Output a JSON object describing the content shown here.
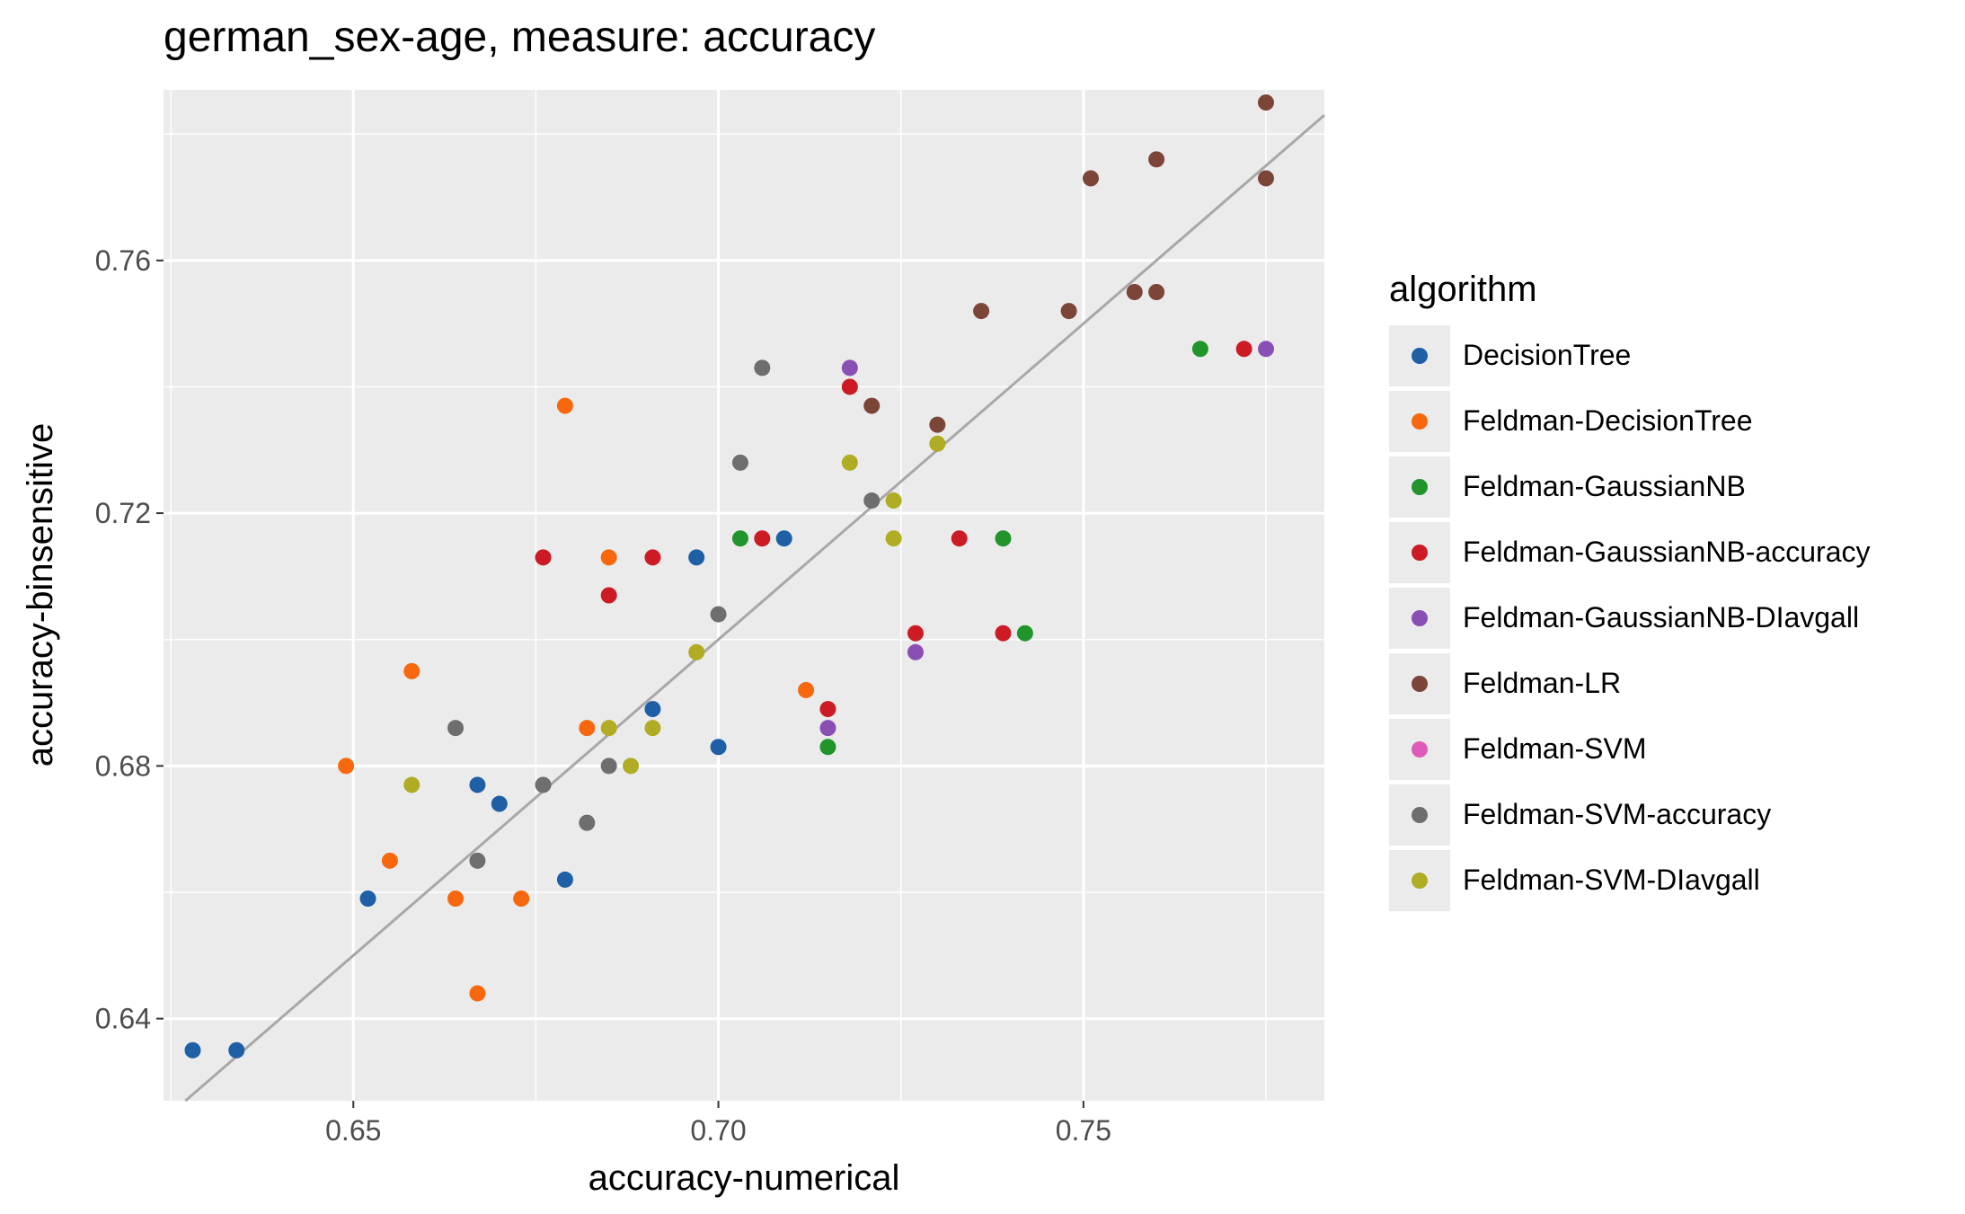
{
  "title": "german_sex-age, measure: accuracy",
  "legend": {
    "title": "algorithm",
    "items": [
      {
        "label": "DecisionTree",
        "color": "#1f5fa6"
      },
      {
        "label": "Feldman-DecisionTree",
        "color": "#f7680e"
      },
      {
        "label": "Feldman-GaussianNB",
        "color": "#21942b"
      },
      {
        "label": "Feldman-GaussianNB-accuracy",
        "color": "#cc1b24"
      },
      {
        "label": "Feldman-GaussianNB-DIavgall",
        "color": "#8a4fb5"
      },
      {
        "label": "Feldman-LR",
        "color": "#7b4538"
      },
      {
        "label": "Feldman-SVM",
        "color": "#de5cb7"
      },
      {
        "label": "Feldman-SVM-accuracy",
        "color": "#6e6e6e"
      },
      {
        "label": "Feldman-SVM-DIavgall",
        "color": "#b0ad24"
      }
    ]
  },
  "chart_data": {
    "type": "scatter",
    "title": "german_sex-age, measure: accuracy",
    "xlabel": "accuracy-numerical",
    "ylabel": "accuracy-binsensitive",
    "xlim": [
      0.624,
      0.783
    ],
    "ylim": [
      0.627,
      0.787
    ],
    "xticks": [
      "0.65",
      "0.70",
      "0.75"
    ],
    "yticks": [
      "0.64",
      "0.68",
      "0.72",
      "0.76"
    ],
    "reference_line": "y = x",
    "grid": true,
    "legend_position": "right",
    "series": [
      {
        "name": "DecisionTree",
        "points": [
          [
            0.628,
            0.635
          ],
          [
            0.634,
            0.635
          ],
          [
            0.652,
            0.659
          ],
          [
            0.667,
            0.677
          ],
          [
            0.67,
            0.674
          ],
          [
            0.679,
            0.662
          ],
          [
            0.691,
            0.689
          ],
          [
            0.697,
            0.713
          ],
          [
            0.7,
            0.683
          ],
          [
            0.709,
            0.716
          ]
        ]
      },
      {
        "name": "Feldman-DecisionTree",
        "points": [
          [
            0.649,
            0.68
          ],
          [
            0.655,
            0.665
          ],
          [
            0.658,
            0.695
          ],
          [
            0.664,
            0.659
          ],
          [
            0.667,
            0.644
          ],
          [
            0.673,
            0.659
          ],
          [
            0.679,
            0.737
          ],
          [
            0.682,
            0.686
          ],
          [
            0.685,
            0.713
          ],
          [
            0.712,
            0.692
          ]
        ]
      },
      {
        "name": "Feldman-GaussianNB",
        "points": [
          [
            0.703,
            0.716
          ],
          [
            0.715,
            0.683
          ],
          [
            0.739,
            0.716
          ],
          [
            0.742,
            0.701
          ],
          [
            0.766,
            0.746
          ]
        ]
      },
      {
        "name": "Feldman-GaussianNB-accuracy",
        "points": [
          [
            0.676,
            0.713
          ],
          [
            0.685,
            0.707
          ],
          [
            0.691,
            0.713
          ],
          [
            0.706,
            0.716
          ],
          [
            0.715,
            0.689
          ],
          [
            0.718,
            0.74
          ],
          [
            0.727,
            0.701
          ],
          [
            0.733,
            0.716
          ],
          [
            0.739,
            0.701
          ],
          [
            0.772,
            0.746
          ]
        ]
      },
      {
        "name": "Feldman-GaussianNB-DIavgall",
        "points": [
          [
            0.715,
            0.686
          ],
          [
            0.718,
            0.743
          ],
          [
            0.727,
            0.698
          ],
          [
            0.775,
            0.746
          ]
        ]
      },
      {
        "name": "Feldman-LR",
        "points": [
          [
            0.721,
            0.737
          ],
          [
            0.73,
            0.734
          ],
          [
            0.736,
            0.752
          ],
          [
            0.748,
            0.752
          ],
          [
            0.751,
            0.773
          ],
          [
            0.757,
            0.755
          ],
          [
            0.76,
            0.755
          ],
          [
            0.76,
            0.776
          ],
          [
            0.775,
            0.773
          ],
          [
            0.775,
            0.785
          ]
        ]
      },
      {
        "name": "Feldman-SVM",
        "points": []
      },
      {
        "name": "Feldman-SVM-accuracy",
        "points": [
          [
            0.664,
            0.686
          ],
          [
            0.667,
            0.665
          ],
          [
            0.676,
            0.677
          ],
          [
            0.682,
            0.671
          ],
          [
            0.685,
            0.68
          ],
          [
            0.7,
            0.704
          ],
          [
            0.703,
            0.728
          ],
          [
            0.706,
            0.743
          ],
          [
            0.721,
            0.722
          ]
        ]
      },
      {
        "name": "Feldman-SVM-DIavgall",
        "points": [
          [
            0.658,
            0.677
          ],
          [
            0.685,
            0.686
          ],
          [
            0.688,
            0.68
          ],
          [
            0.691,
            0.686
          ],
          [
            0.697,
            0.698
          ],
          [
            0.718,
            0.728
          ],
          [
            0.724,
            0.716
          ],
          [
            0.724,
            0.722
          ],
          [
            0.73,
            0.731
          ]
        ]
      }
    ]
  }
}
